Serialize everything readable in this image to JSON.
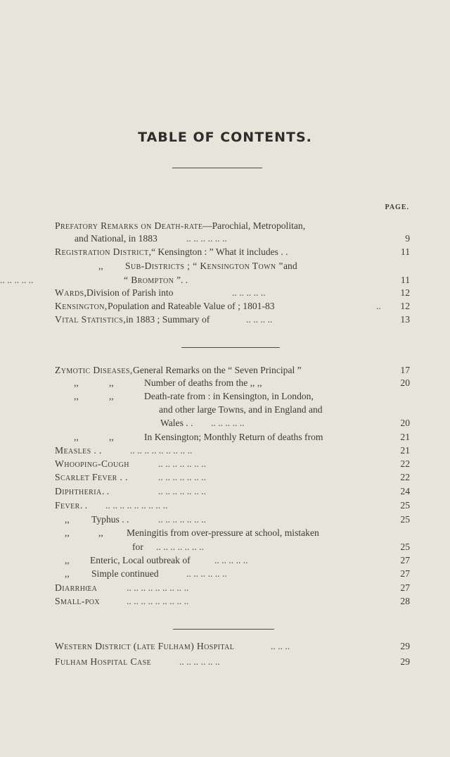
{
  "title": "TABLE OF CONTENTS.",
  "page_header": "PAGE.",
  "entries": [
    {
      "head": "Prefatory Remarks on Death-rate",
      "text": "—Parochial, Metropolitan,"
    },
    {
      "text": "and National, in 1883",
      "leader": "..   ..   ..   ..   ..   ..",
      "page": "9"
    },
    {
      "head": "Registration District,",
      "text": " “ Kensington : ” What it includes . .",
      "page": "11"
    },
    {
      "ditto": ",,",
      "head": "Sub-Districts ;  “ Kensington  Town ”",
      "text": "  and"
    },
    {
      "head": "“ Brompton ”",
      "text": ". .",
      "leader": "..   ..   ..   ..   ..",
      "page": "11"
    },
    {
      "head": "Wards,",
      "text": " Division of Parish into",
      "leader": "..   ..   ..   ..   ..",
      "page": "12"
    },
    {
      "head": "Kensington,",
      "text": " Population and Rateable Value of ; 1801-83",
      "leader": "..",
      "page": "12"
    },
    {
      "head": "Vital Statistics,",
      "text": " in 1883 ; Summary of",
      "leader": "..   ..   ..   ..",
      "page": "13"
    },
    {
      "head": "Zymotic Diseases,",
      "text": " General Remarks on the “ Seven Principal ”",
      "page": "17"
    },
    {
      "ditto": ",,",
      "ditto2": ",,",
      "text": "Number of deaths from the       ,,         ,,",
      "page": "20"
    },
    {
      "ditto": ",,",
      "ditto2": ",,",
      "text": "Death-rate from : in Kensington, in London,"
    },
    {
      "text": "and other large Towns, and in England and"
    },
    {
      "text": "Wales . .",
      "leader": "..   ..   ..   ..   ..",
      "page": "20"
    },
    {
      "ditto": ",,",
      "ditto2": ",,",
      "text": "In Kensington; Monthly Return of deaths from",
      "page": "21"
    },
    {
      "head": "Measles . .",
      "leader": "..   ..   ..   ..   ..   ..   ..   ..   ..",
      "page": "21"
    },
    {
      "head": "Whooping-Cough",
      "leader": "..   ..   ..   ..   ..   ..   ..",
      "page": "22"
    },
    {
      "head": "Scarlet Fever . .",
      "leader": "..   ..   ..   ..   ..   ..   ..",
      "page": "22"
    },
    {
      "head": "Diphtheria",
      "text": " . .",
      "leader": "..   ..   ..   ..   ..   ..   ..",
      "page": "24"
    },
    {
      "head": "Fever",
      "text": " . .",
      "leader": "..   ..   ..   ..   ..   ..   ..   ..   ..",
      "page": "25"
    },
    {
      "ditto": ",,",
      "text": "Typhus . .",
      "leader": "..   ..   ..   ..   ..   ..   ..",
      "page": "25"
    },
    {
      "ditto": ",,",
      "ditto2": ",,",
      "text": "Meningitis from over-pressure at school, mistaken"
    },
    {
      "text": "for",
      "leader": "..   ..   ..   ..   ..   ..   ..",
      "page": "25"
    },
    {
      "ditto": ",,",
      "text": "Enteric, Local outbreak of",
      "leader": "..   ..   ..   ..   ..",
      "page": "27"
    },
    {
      "ditto": ",,",
      "text": "Simple continued",
      "leader": "..   ..   ..   ..   ..   ..",
      "page": "27"
    },
    {
      "head": "Diarrhœa",
      "leader": "..   ..   ..   ..   ..   ..   ..   ..   ..",
      "page": "27"
    },
    {
      "head": "Small-pox",
      "leader": "..   ..   ..   ..   ..   ..   ..   ..   ..",
      "page": "28"
    },
    {
      "head": "Western District (late Fulham) Hospital",
      "leader": "..   ..   ..",
      "page": "29"
    },
    {
      "head": "Fulham Hospital Case",
      "leader": "..   ..   ..   ..   ..   ..",
      "page": "29"
    }
  ]
}
